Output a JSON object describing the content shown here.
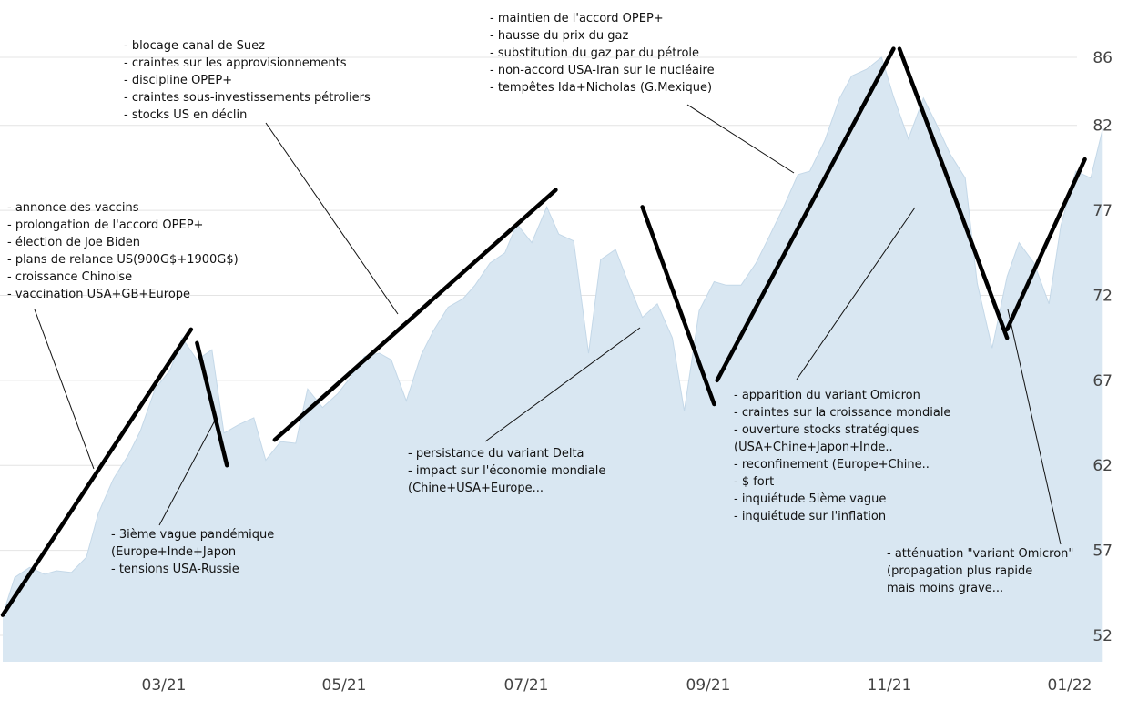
{
  "chart_data": {
    "type": "area",
    "title": "",
    "xlabel": "",
    "ylabel": "",
    "x_tick_labels": [
      "03/21",
      "05/21",
      "07/21",
      "09/21",
      "11/21",
      "01/22"
    ],
    "y_tick_labels": [
      "52",
      "57",
      "62",
      "67",
      "72",
      "77",
      "82",
      "86"
    ],
    "ylim": [
      50.5,
      87.5
    ],
    "grid": "horizontal",
    "colors": {
      "area": "#d9e7f2",
      "area_stroke": "#c4d8e8",
      "trend": "#000000",
      "grid": "#e4e4e4"
    },
    "series": [
      {
        "x": [
          "2021-01-04",
          "2021-01-08",
          "2021-01-13",
          "2021-01-18",
          "2021-01-22",
          "2021-01-27",
          "2021-02-01",
          "2021-02-05",
          "2021-02-10",
          "2021-02-15",
          "2021-02-19",
          "2021-02-24",
          "2021-03-01",
          "2021-03-05",
          "2021-03-10",
          "2021-03-15",
          "2021-03-19",
          "2021-03-24",
          "2021-03-29",
          "2021-04-02",
          "2021-04-07",
          "2021-04-12",
          "2021-04-16",
          "2021-04-21",
          "2021-04-26",
          "2021-04-30",
          "2021-05-05",
          "2021-05-10",
          "2021-05-14",
          "2021-05-19",
          "2021-05-24",
          "2021-05-28",
          "2021-06-02",
          "2021-06-07",
          "2021-06-11",
          "2021-06-16",
          "2021-06-21",
          "2021-06-25",
          "2021-06-30",
          "2021-07-05",
          "2021-07-09",
          "2021-07-14",
          "2021-07-19",
          "2021-07-23",
          "2021-07-28",
          "2021-08-02",
          "2021-08-06",
          "2021-08-11",
          "2021-08-16",
          "2021-08-20",
          "2021-08-25",
          "2021-08-30",
          "2021-09-03",
          "2021-09-08",
          "2021-09-13",
          "2021-09-17",
          "2021-09-22",
          "2021-09-27",
          "2021-10-01",
          "2021-10-06",
          "2021-10-11",
          "2021-10-15",
          "2021-10-20",
          "2021-10-25",
          "2021-10-29",
          "2021-11-03",
          "2021-11-08",
          "2021-11-12",
          "2021-11-17",
          "2021-11-22",
          "2021-11-26",
          "2021-12-01",
          "2021-12-06",
          "2021-12-10",
          "2021-12-15",
          "2021-12-20",
          "2021-12-24",
          "2021-12-29",
          "2022-01-03",
          "2022-01-07"
        ],
        "values": [
          53.2,
          55.4,
          56.0,
          55.6,
          55.8,
          55.7,
          56.6,
          59.2,
          61.2,
          62.6,
          64.0,
          66.5,
          67.6,
          69.5,
          68.2,
          68.8,
          63.9,
          64.4,
          64.8,
          62.3,
          63.4,
          63.3,
          66.5,
          65.4,
          66.2,
          67.1,
          68.4,
          68.6,
          68.2,
          65.8,
          68.5,
          69.9,
          71.3,
          71.8,
          72.6,
          73.9,
          74.5,
          76.2,
          75.1,
          77.2,
          75.6,
          75.2,
          68.6,
          74.1,
          74.7,
          72.4,
          70.7,
          71.5,
          69.5,
          65.2,
          71.1,
          72.8,
          72.6,
          72.6,
          73.9,
          75.3,
          77.1,
          79.1,
          79.3,
          81.1,
          83.6,
          84.9,
          85.3,
          86.0,
          83.7,
          81.2,
          83.6,
          82.2,
          80.3,
          78.9,
          72.7,
          68.9,
          73.1,
          75.1,
          73.9,
          71.5,
          76.1,
          79.3,
          78.9,
          81.8
        ]
      }
    ],
    "trend_lines": [
      {
        "from": [
          "2021-01-04",
          53.2
        ],
        "to": [
          "2021-03-08",
          70.0
        ]
      },
      {
        "from": [
          "2021-03-10",
          69.2
        ],
        "to": [
          "2021-03-20",
          62.0
        ]
      },
      {
        "from": [
          "2021-04-05",
          63.5
        ],
        "to": [
          "2021-07-08",
          78.2
        ]
      },
      {
        "from": [
          "2021-08-06",
          77.2
        ],
        "to": [
          "2021-08-30",
          65.6
        ]
      },
      {
        "from": [
          "2021-08-31",
          67.0
        ],
        "to": [
          "2021-10-29",
          86.5
        ]
      },
      {
        "from": [
          "2021-10-31",
          86.5
        ],
        "to": [
          "2021-12-06",
          69.5
        ]
      },
      {
        "from": [
          "2021-12-06",
          70.0
        ],
        "to": [
          "2022-01-01",
          80.0
        ]
      }
    ],
    "annotations": [
      {
        "lines": [
          "- annonce des vaccins",
          "- prolongation de l'accord OPEP+",
          "- élection de Joe Biden",
          "- plans de relance US(900G$+1900G$)",
          "- croissance Chinoise",
          "- vaccination USA+GB+Europe"
        ]
      },
      {
        "lines": [
          "- blocage canal de Suez",
          "- craintes sur les approvisionnements",
          "- discipline OPEP+",
          "- craintes sous-investissements pétroliers",
          "- stocks US en déclin"
        ]
      },
      {
        "lines": [
          "- maintien de l'accord OPEP+",
          "- hausse du prix du gaz",
          "- substitution du gaz par du pétrole",
          "- non-accord USA-Iran sur le nucléaire",
          "- tempêtes Ida+Nicholas (G.Mexique)"
        ]
      },
      {
        "lines": [
          "- 3ième vague pandémique",
          "(Europe+Inde+Japon",
          "- tensions USA-Russie"
        ]
      },
      {
        "lines": [
          "- persistance du variant Delta",
          "- impact sur l'économie mondiale",
          "(Chine+USA+Europe..."
        ]
      },
      {
        "lines": [
          "- apparition du variant Omicron",
          "- craintes sur la croissance mondiale",
          "- ouverture stocks stratégiques",
          "(USA+Chine+Japon+Inde..",
          "- reconfinement (Europe+Chine..",
          "- $ fort",
          "- inquiétude 5ième vague",
          "- inquiétude sur l'inflation"
        ]
      },
      {
        "lines": [
          "- atténuation \"variant Omicron\"",
          "(propagation plus rapide",
          "mais moins grave..."
        ]
      }
    ]
  }
}
